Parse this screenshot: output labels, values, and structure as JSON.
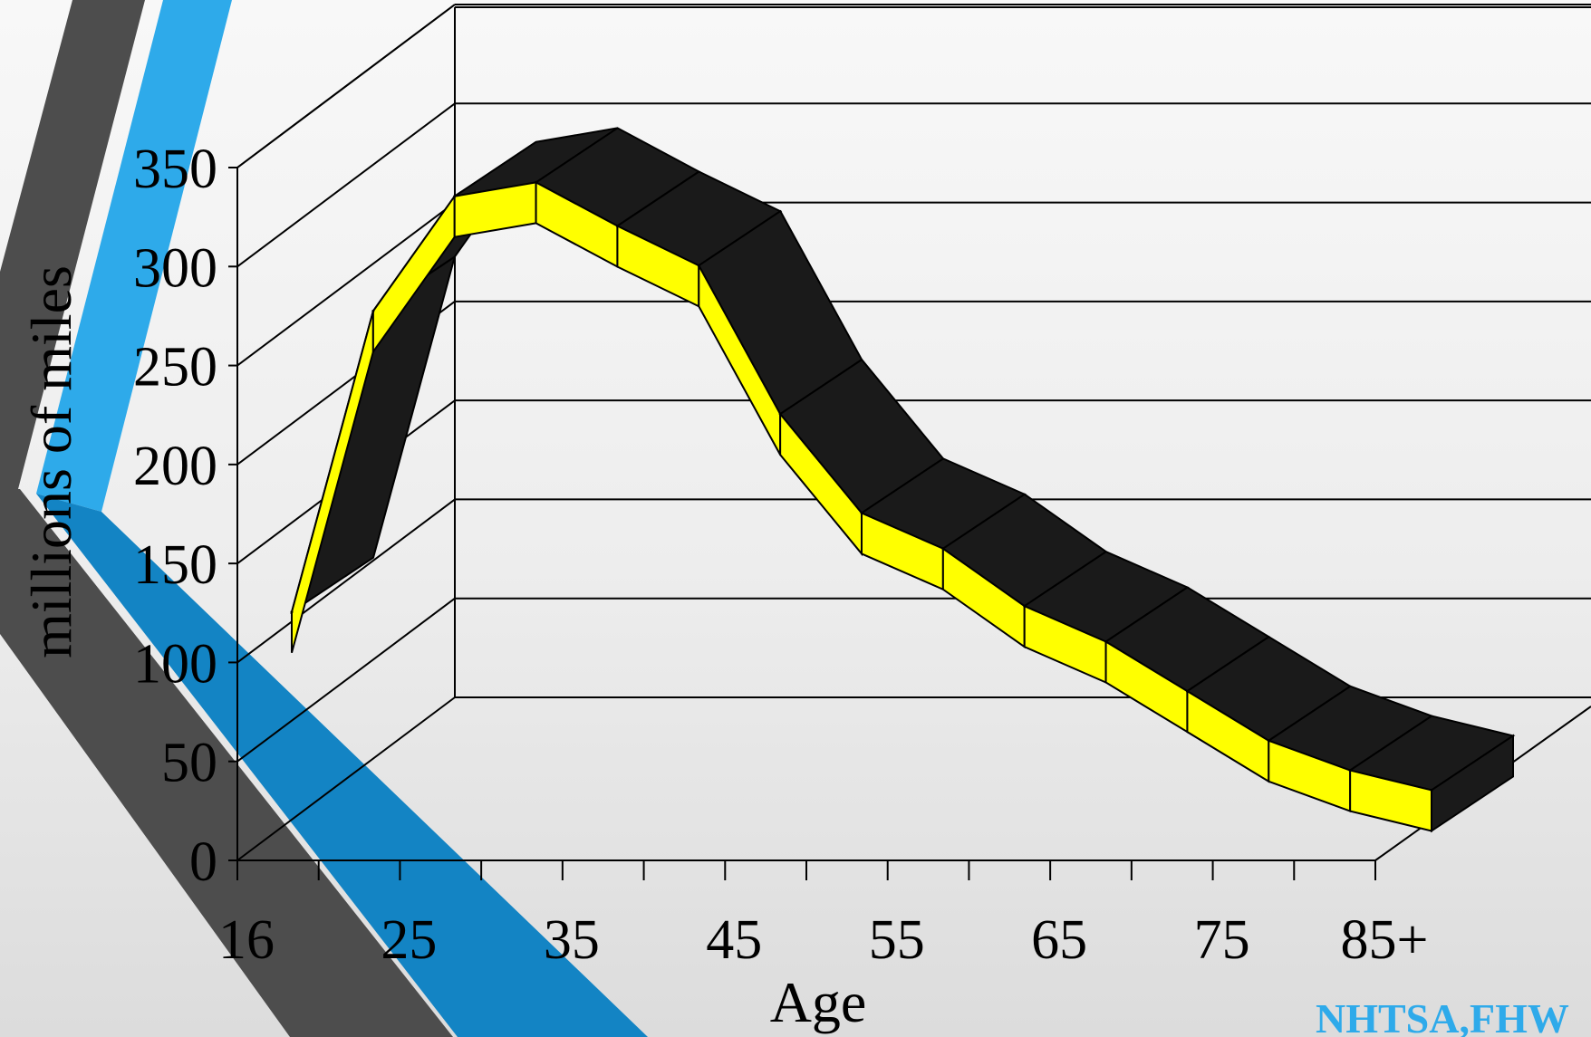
{
  "chart_data": {
    "type": "area",
    "style": "3d-ribbon",
    "title": "",
    "xlabel": "Age",
    "ylabel": "millions of miles",
    "x_tick_labels": [
      "16",
      "25",
      "35",
      "45",
      "55",
      "65",
      "75",
      "85+"
    ],
    "ylim": [
      0,
      350
    ],
    "y_ticks": [
      0,
      50,
      100,
      150,
      200,
      250,
      300,
      350
    ],
    "grid": true,
    "series": [
      {
        "values": [
          120,
          272,
          330,
          337,
          315,
          295,
          220,
          170,
          152,
          123,
          105,
          80,
          55,
          40,
          30
        ]
      }
    ],
    "colors": {
      "ribbon_front": "#ffff00",
      "ribbon_top": "#1a1a1a",
      "axes": "#000000"
    }
  },
  "source_text": "NHTSA,FHW",
  "decor": {
    "stripe_gray": "#4d4d4d",
    "stripe_blue": "#2eaaea",
    "stripe_blue_dark": "#1384c4",
    "source_color": "#2eaaea"
  }
}
